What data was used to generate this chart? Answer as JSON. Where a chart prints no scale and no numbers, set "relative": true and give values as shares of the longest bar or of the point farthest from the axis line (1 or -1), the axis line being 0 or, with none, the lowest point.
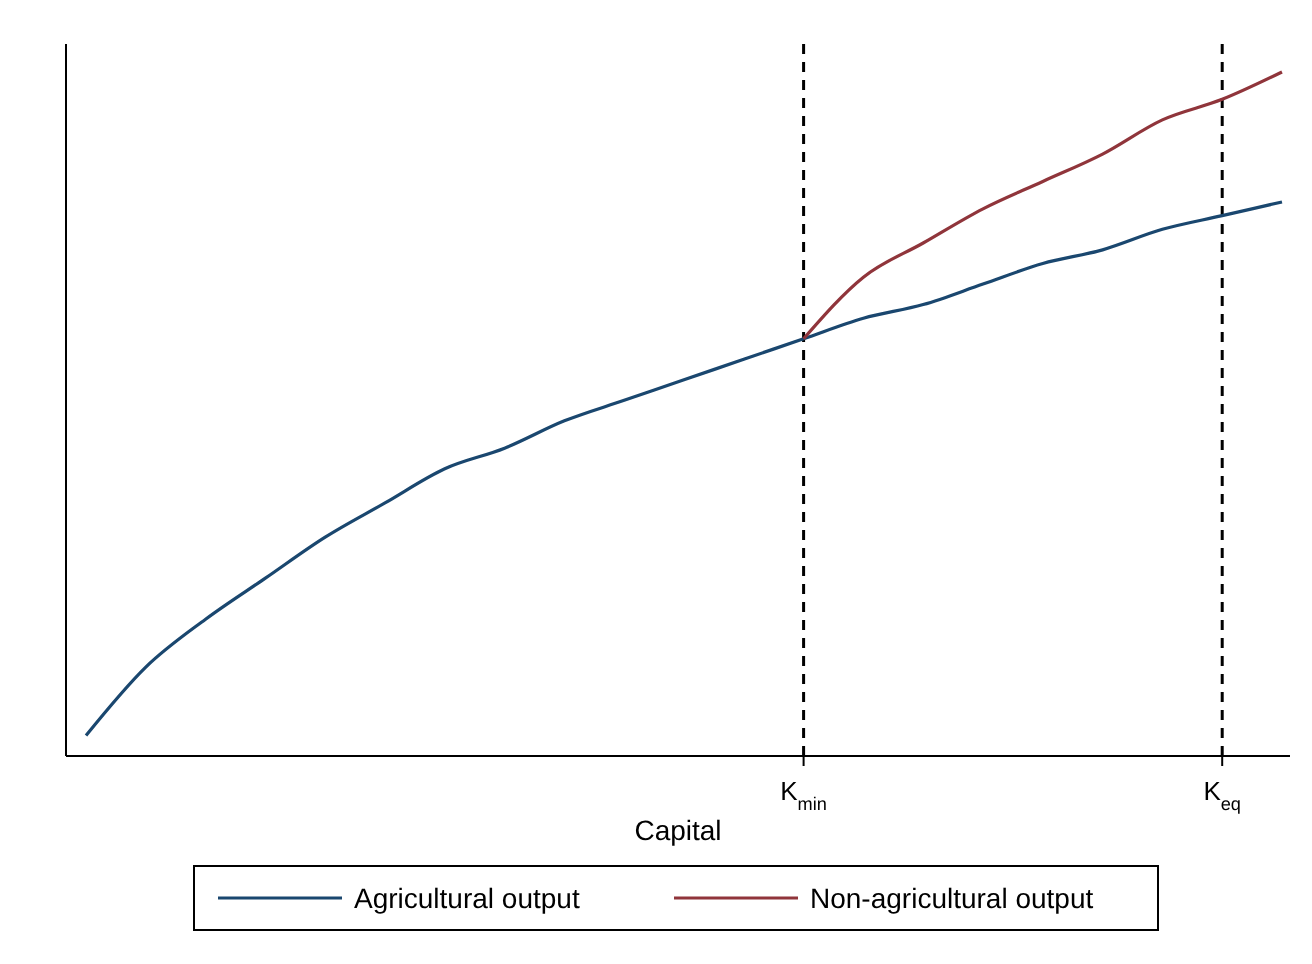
{
  "chart_data": {
    "type": "line",
    "relative": true,
    "xlabel": "Capital",
    "categories": [
      null,
      null,
      null,
      null,
      null,
      null,
      null,
      null,
      null,
      null,
      null,
      null,
      "K$_{min}$",
      null,
      null,
      null,
      null,
      null,
      null,
      "K$_{eq}$",
      null
    ],
    "series": [
      {
        "name": "Agricultural output",
        "color": "#1a476f",
        "values": [
          0.03,
          0.13,
          0.2,
          0.26,
          0.32,
          0.37,
          0.42,
          0.45,
          0.49,
          0.52,
          0.55,
          0.58,
          0.61,
          0.64,
          0.66,
          0.69,
          0.72,
          0.74,
          0.77,
          0.79,
          0.81
        ]
      },
      {
        "name": "Non-agricultural output",
        "color": "#90353b",
        "values": [
          null,
          null,
          null,
          null,
          null,
          null,
          null,
          null,
          null,
          null,
          null,
          null,
          0.61,
          0.7,
          0.75,
          0.8,
          0.84,
          0.88,
          0.93,
          0.96,
          1.0
        ]
      }
    ],
    "ref_lines": [
      {
        "axis": "x",
        "value": "K$_{min}$",
        "color": "#000000",
        "line_style": "dashed"
      },
      {
        "axis": "x",
        "value": "K$_{eq}$",
        "color": "#000000",
        "line_style": "dashed"
      }
    ],
    "tick_labels": "x",
    "legend": "bottom",
    "marker": "none",
    "line_style": "solid"
  }
}
